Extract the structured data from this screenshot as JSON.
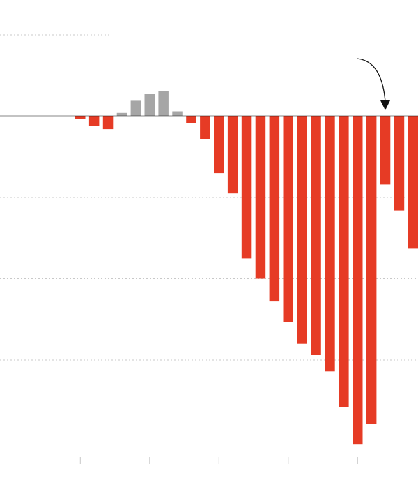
{
  "chart_data": {
    "type": "bar",
    "title": "",
    "xlabel": "",
    "ylabel": "",
    "ylim": [
      -4.05,
      1.4
    ],
    "gridlines": [
      1,
      -1,
      -2,
      -3,
      -4
    ],
    "grid": true,
    "colors": {
      "negative": "#e63b25",
      "positive": "#a6a6a6",
      "baseline": "#111111",
      "grid": "#c8c8c8",
      "tick": "#c8c8c8",
      "annotation": "#111111"
    },
    "values": [
      -0.03,
      -0.12,
      -0.16,
      0.04,
      0.19,
      0.27,
      0.31,
      0.06,
      -0.09,
      -0.28,
      -0.7,
      -0.95,
      -1.75,
      -2.0,
      -2.28,
      -2.53,
      -2.8,
      -2.94,
      -3.14,
      -3.58,
      -4.04,
      -3.79,
      -0.84,
      -1.16,
      -1.63
    ],
    "tick_marks_after_bar": [
      0,
      5,
      10,
      15,
      20
    ],
    "annotation": {
      "type": "arrow",
      "points_to_bar": 22,
      "text": ""
    }
  }
}
